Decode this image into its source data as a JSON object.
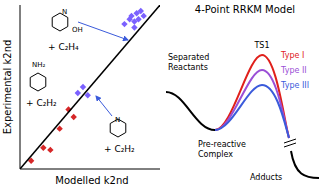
{
  "chart_data": {
    "type": "scatter",
    "x_label": "Modelled k2nd",
    "y_label": "Experimental k2nd",
    "log": true,
    "tick_labels": false,
    "xlim": [
      1e-17,
      1e-11
    ],
    "ylim": [
      1e-17,
      1e-11
    ],
    "series": [
      {
        "color": "#d62728",
        "marker": "diamond",
        "x": [
          3e-17,
          1e-16,
          2e-16,
          5e-16,
          1.2e-15,
          2e-15
        ],
        "values": [
          2e-17,
          6e-17,
          5e-17,
          3e-16,
          1.5e-15,
          8e-16
        ]
      },
      {
        "color": "#7b61ff",
        "marker": "diamond",
        "x": [
          3e-15,
          5e-15,
          8e-15,
          3e-13,
          5e-13,
          6e-13,
          8e-13,
          1e-12,
          1.2e-12,
          1.5e-12,
          2e-12,
          8e-13
        ],
        "values": [
          6e-15,
          1e-14,
          5e-15,
          2e-12,
          3e-12,
          4e-12,
          2.5e-12,
          5e-12,
          3e-12,
          6e-12,
          4e-12,
          1.5e-12
        ]
      },
      {
        "type": "line",
        "color": "#000000",
        "x": [
          1e-17,
          1e-11
        ],
        "values": [
          1e-17,
          1e-11
        ]
      }
    ],
    "annotations": [
      "+ C₂H₄",
      "+ C₂H₂",
      "+ C₂H₂",
      "OH",
      "NH₂",
      "N"
    ]
  },
  "diagram": {
    "title": "4-Point RRKM Model",
    "start": "Separated Reactants",
    "complex": "Pre-reactive Complex",
    "ts": "TS1",
    "products": "Adducts",
    "types": [
      {
        "label": "Type I",
        "color": "#e0201b"
      },
      {
        "label": "Type II",
        "color": "#9b4fd6"
      },
      {
        "label": "Type III",
        "color": "#3b5bdb"
      }
    ]
  }
}
